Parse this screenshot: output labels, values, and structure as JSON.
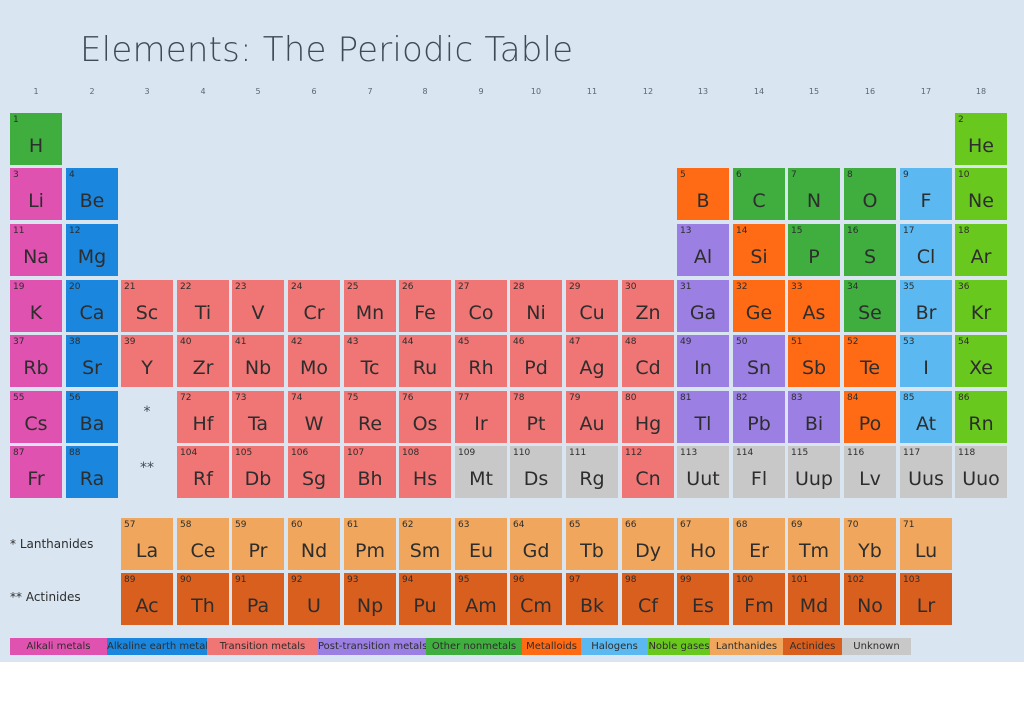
{
  "title": "Elements: The Periodic Table",
  "group_numbers": [
    "1",
    "2",
    "3",
    "4",
    "5",
    "6",
    "7",
    "8",
    "9",
    "10",
    "11",
    "12",
    "13",
    "14",
    "15",
    "16",
    "17",
    "18"
  ],
  "colors": {
    "alkali": "#e052b0",
    "alkaline": "#1b86dd",
    "transition": "#f07575",
    "post": "#9b7fe3",
    "nonmetal": "#3fae3f",
    "metalloid": "#ff6a15",
    "halogen": "#5bb8f0",
    "noble": "#69c81d",
    "lanthanide": "#f0a65c",
    "actinide": "#d95f1f",
    "unknown": "#c8c8c8"
  },
  "markers": {
    "lanthanide_mark": "*",
    "actinide_mark": "**"
  },
  "series_labels": {
    "lanthanides": "* Lanthanides",
    "actinides": "** Actinides"
  },
  "elements": [
    {
      "n": "1",
      "s": "H",
      "c": "nonmetal",
      "g": 1,
      "p": 1
    },
    {
      "n": "2",
      "s": "He",
      "c": "noble",
      "g": 18,
      "p": 1
    },
    {
      "n": "3",
      "s": "Li",
      "c": "alkali",
      "g": 1,
      "p": 2
    },
    {
      "n": "4",
      "s": "Be",
      "c": "alkaline",
      "g": 2,
      "p": 2
    },
    {
      "n": "5",
      "s": "B",
      "c": "metalloid",
      "g": 13,
      "p": 2
    },
    {
      "n": "6",
      "s": "C",
      "c": "nonmetal",
      "g": 14,
      "p": 2
    },
    {
      "n": "7",
      "s": "N",
      "c": "nonmetal",
      "g": 15,
      "p": 2
    },
    {
      "n": "8",
      "s": "O",
      "c": "nonmetal",
      "g": 16,
      "p": 2
    },
    {
      "n": "9",
      "s": "F",
      "c": "halogen",
      "g": 17,
      "p": 2
    },
    {
      "n": "10",
      "s": "Ne",
      "c": "noble",
      "g": 18,
      "p": 2
    },
    {
      "n": "11",
      "s": "Na",
      "c": "alkali",
      "g": 1,
      "p": 3
    },
    {
      "n": "12",
      "s": "Mg",
      "c": "alkaline",
      "g": 2,
      "p": 3
    },
    {
      "n": "13",
      "s": "Al",
      "c": "post",
      "g": 13,
      "p": 3
    },
    {
      "n": "14",
      "s": "Si",
      "c": "metalloid",
      "g": 14,
      "p": 3
    },
    {
      "n": "15",
      "s": "P",
      "c": "nonmetal",
      "g": 15,
      "p": 3
    },
    {
      "n": "16",
      "s": "S",
      "c": "nonmetal",
      "g": 16,
      "p": 3
    },
    {
      "n": "17",
      "s": "Cl",
      "c": "halogen",
      "g": 17,
      "p": 3
    },
    {
      "n": "18",
      "s": "Ar",
      "c": "noble",
      "g": 18,
      "p": 3
    },
    {
      "n": "19",
      "s": "K",
      "c": "alkali",
      "g": 1,
      "p": 4
    },
    {
      "n": "20",
      "s": "Ca",
      "c": "alkaline",
      "g": 2,
      "p": 4
    },
    {
      "n": "21",
      "s": "Sc",
      "c": "transition",
      "g": 3,
      "p": 4
    },
    {
      "n": "22",
      "s": "Ti",
      "c": "transition",
      "g": 4,
      "p": 4
    },
    {
      "n": "23",
      "s": "V",
      "c": "transition",
      "g": 5,
      "p": 4
    },
    {
      "n": "24",
      "s": "Cr",
      "c": "transition",
      "g": 6,
      "p": 4
    },
    {
      "n": "25",
      "s": "Mn",
      "c": "transition",
      "g": 7,
      "p": 4
    },
    {
      "n": "26",
      "s": "Fe",
      "c": "transition",
      "g": 8,
      "p": 4
    },
    {
      "n": "27",
      "s": "Co",
      "c": "transition",
      "g": 9,
      "p": 4
    },
    {
      "n": "28",
      "s": "Ni",
      "c": "transition",
      "g": 10,
      "p": 4
    },
    {
      "n": "29",
      "s": "Cu",
      "c": "transition",
      "g": 11,
      "p": 4
    },
    {
      "n": "30",
      "s": "Zn",
      "c": "transition",
      "g": 12,
      "p": 4
    },
    {
      "n": "31",
      "s": "Ga",
      "c": "post",
      "g": 13,
      "p": 4
    },
    {
      "n": "32",
      "s": "Ge",
      "c": "metalloid",
      "g": 14,
      "p": 4
    },
    {
      "n": "33",
      "s": "As",
      "c": "metalloid",
      "g": 15,
      "p": 4
    },
    {
      "n": "34",
      "s": "Se",
      "c": "nonmetal",
      "g": 16,
      "p": 4
    },
    {
      "n": "35",
      "s": "Br",
      "c": "halogen",
      "g": 17,
      "p": 4
    },
    {
      "n": "36",
      "s": "Kr",
      "c": "noble",
      "g": 18,
      "p": 4
    },
    {
      "n": "37",
      "s": "Rb",
      "c": "alkali",
      "g": 1,
      "p": 5
    },
    {
      "n": "38",
      "s": "Sr",
      "c": "alkaline",
      "g": 2,
      "p": 5
    },
    {
      "n": "39",
      "s": "Y",
      "c": "transition",
      "g": 3,
      "p": 5
    },
    {
      "n": "40",
      "s": "Zr",
      "c": "transition",
      "g": 4,
      "p": 5
    },
    {
      "n": "41",
      "s": "Nb",
      "c": "transition",
      "g": 5,
      "p": 5
    },
    {
      "n": "42",
      "s": "Mo",
      "c": "transition",
      "g": 6,
      "p": 5
    },
    {
      "n": "43",
      "s": "Tc",
      "c": "transition",
      "g": 7,
      "p": 5
    },
    {
      "n": "44",
      "s": "Ru",
      "c": "transition",
      "g": 8,
      "p": 5
    },
    {
      "n": "45",
      "s": "Rh",
      "c": "transition",
      "g": 9,
      "p": 5
    },
    {
      "n": "46",
      "s": "Pd",
      "c": "transition",
      "g": 10,
      "p": 5
    },
    {
      "n": "47",
      "s": "Ag",
      "c": "transition",
      "g": 11,
      "p": 5
    },
    {
      "n": "48",
      "s": "Cd",
      "c": "transition",
      "g": 12,
      "p": 5
    },
    {
      "n": "49",
      "s": "In",
      "c": "post",
      "g": 13,
      "p": 5
    },
    {
      "n": "50",
      "s": "Sn",
      "c": "post",
      "g": 14,
      "p": 5
    },
    {
      "n": "51",
      "s": "Sb",
      "c": "metalloid",
      "g": 15,
      "p": 5
    },
    {
      "n": "52",
      "s": "Te",
      "c": "metalloid",
      "g": 16,
      "p": 5
    },
    {
      "n": "53",
      "s": "I",
      "c": "halogen",
      "g": 17,
      "p": 5
    },
    {
      "n": "54",
      "s": "Xe",
      "c": "noble",
      "g": 18,
      "p": 5
    },
    {
      "n": "55",
      "s": "Cs",
      "c": "alkali",
      "g": 1,
      "p": 6
    },
    {
      "n": "56",
      "s": "Ba",
      "c": "alkaline",
      "g": 2,
      "p": 6
    },
    {
      "n": "72",
      "s": "Hf",
      "c": "transition",
      "g": 4,
      "p": 6
    },
    {
      "n": "73",
      "s": "Ta",
      "c": "transition",
      "g": 5,
      "p": 6
    },
    {
      "n": "74",
      "s": "W",
      "c": "transition",
      "g": 6,
      "p": 6
    },
    {
      "n": "75",
      "s": "Re",
      "c": "transition",
      "g": 7,
      "p": 6
    },
    {
      "n": "76",
      "s": "Os",
      "c": "transition",
      "g": 8,
      "p": 6
    },
    {
      "n": "77",
      "s": "Ir",
      "c": "transition",
      "g": 9,
      "p": 6
    },
    {
      "n": "78",
      "s": "Pt",
      "c": "transition",
      "g": 10,
      "p": 6
    },
    {
      "n": "79",
      "s": "Au",
      "c": "transition",
      "g": 11,
      "p": 6
    },
    {
      "n": "80",
      "s": "Hg",
      "c": "transition",
      "g": 12,
      "p": 6
    },
    {
      "n": "81",
      "s": "Tl",
      "c": "post",
      "g": 13,
      "p": 6
    },
    {
      "n": "82",
      "s": "Pb",
      "c": "post",
      "g": 14,
      "p": 6
    },
    {
      "n": "83",
      "s": "Bi",
      "c": "post",
      "g": 15,
      "p": 6
    },
    {
      "n": "84",
      "s": "Po",
      "c": "metalloid",
      "g": 16,
      "p": 6
    },
    {
      "n": "85",
      "s": "At",
      "c": "halogen",
      "g": 17,
      "p": 6
    },
    {
      "n": "86",
      "s": "Rn",
      "c": "noble",
      "g": 18,
      "p": 6
    },
    {
      "n": "87",
      "s": "Fr",
      "c": "alkali",
      "g": 1,
      "p": 7
    },
    {
      "n": "88",
      "s": "Ra",
      "c": "alkaline",
      "g": 2,
      "p": 7
    },
    {
      "n": "104",
      "s": "Rf",
      "c": "transition",
      "g": 4,
      "p": 7
    },
    {
      "n": "105",
      "s": "Db",
      "c": "transition",
      "g": 5,
      "p": 7
    },
    {
      "n": "106",
      "s": "Sg",
      "c": "transition",
      "g": 6,
      "p": 7
    },
    {
      "n": "107",
      "s": "Bh",
      "c": "transition",
      "g": 7,
      "p": 7
    },
    {
      "n": "108",
      "s": "Hs",
      "c": "transition",
      "g": 8,
      "p": 7
    },
    {
      "n": "109",
      "s": "Mt",
      "c": "unknown",
      "g": 9,
      "p": 7
    },
    {
      "n": "110",
      "s": "Ds",
      "c": "unknown",
      "g": 10,
      "p": 7
    },
    {
      "n": "111",
      "s": "Rg",
      "c": "unknown",
      "g": 11,
      "p": 7
    },
    {
      "n": "112",
      "s": "Cn",
      "c": "transition",
      "g": 12,
      "p": 7
    },
    {
      "n": "113",
      "s": "Uut",
      "c": "unknown",
      "g": 13,
      "p": 7
    },
    {
      "n": "114",
      "s": "Fl",
      "c": "unknown",
      "g": 14,
      "p": 7
    },
    {
      "n": "115",
      "s": "Uup",
      "c": "unknown",
      "g": 15,
      "p": 7
    },
    {
      "n": "116",
      "s": "Lv",
      "c": "unknown",
      "g": 16,
      "p": 7
    },
    {
      "n": "117",
      "s": "Uus",
      "c": "unknown",
      "g": 17,
      "p": 7
    },
    {
      "n": "118",
      "s": "Uuo",
      "c": "unknown",
      "g": 18,
      "p": 7
    }
  ],
  "lanthanides": [
    {
      "n": "57",
      "s": "La"
    },
    {
      "n": "58",
      "s": "Ce"
    },
    {
      "n": "59",
      "s": "Pr"
    },
    {
      "n": "60",
      "s": "Nd"
    },
    {
      "n": "61",
      "s": "Pm"
    },
    {
      "n": "62",
      "s": "Sm"
    },
    {
      "n": "63",
      "s": "Eu"
    },
    {
      "n": "64",
      "s": "Gd"
    },
    {
      "n": "65",
      "s": "Tb"
    },
    {
      "n": "66",
      "s": "Dy"
    },
    {
      "n": "67",
      "s": "Ho"
    },
    {
      "n": "68",
      "s": "Er"
    },
    {
      "n": "69",
      "s": "Tm"
    },
    {
      "n": "70",
      "s": "Yb"
    },
    {
      "n": "71",
      "s": "Lu"
    }
  ],
  "actinides": [
    {
      "n": "89",
      "s": "Ac"
    },
    {
      "n": "90",
      "s": "Th"
    },
    {
      "n": "91",
      "s": "Pa"
    },
    {
      "n": "92",
      "s": "U"
    },
    {
      "n": "93",
      "s": "Np"
    },
    {
      "n": "94",
      "s": "Pu"
    },
    {
      "n": "95",
      "s": "Am"
    },
    {
      "n": "96",
      "s": "Cm"
    },
    {
      "n": "97",
      "s": "Bk"
    },
    {
      "n": "98",
      "s": "Cf"
    },
    {
      "n": "99",
      "s": "Es"
    },
    {
      "n": "100",
      "s": "Fm"
    },
    {
      "n": "101",
      "s": "Md"
    },
    {
      "n": "102",
      "s": "No"
    },
    {
      "n": "103",
      "s": "Lr"
    }
  ],
  "legend": [
    {
      "label": "Alkali metals",
      "c": "alkali"
    },
    {
      "label": "Alkaline earth metals",
      "c": "alkaline"
    },
    {
      "label": "Transition metals",
      "c": "transition"
    },
    {
      "label": "Post-transition metals",
      "c": "post"
    },
    {
      "label": "Other nonmetals",
      "c": "nonmetal"
    },
    {
      "label": "Metalloids",
      "c": "metalloid"
    },
    {
      "label": "Halogens",
      "c": "halogen"
    },
    {
      "label": "Noble gases",
      "c": "noble"
    },
    {
      "label": "Lanthanides",
      "c": "lanthanide"
    },
    {
      "label": "Actinides",
      "c": "actinide"
    },
    {
      "label": "Unknown",
      "c": "unknown"
    }
  ]
}
